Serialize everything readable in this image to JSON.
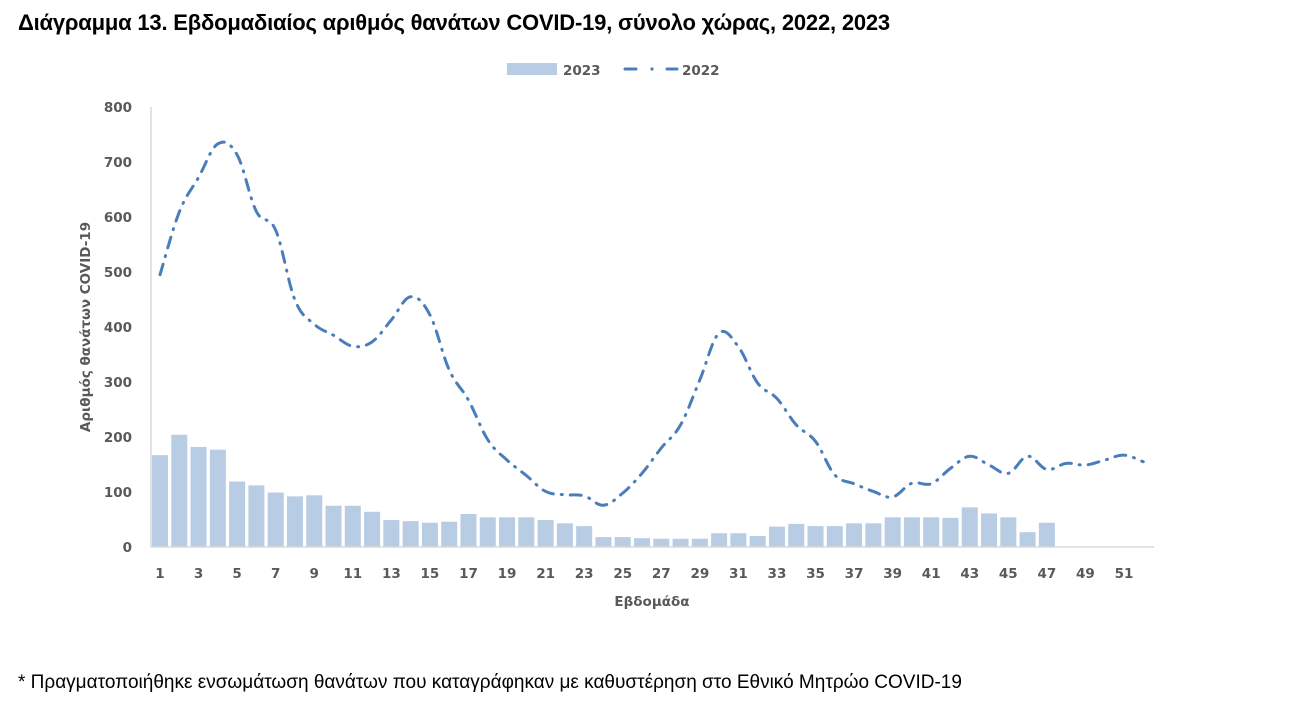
{
  "title": "Διάγραμμα 13. Εβδομαδιαίος αριθμός θανάτων COVID-19, σύνολο χώρας, 2022, 2023",
  "footnote": "* Πραγματοποιήθηκε ενσωμάτωση θανάτων που καταγράφηκαν με καθυστέρηση στο Εθνικό Μητρώο COVID-19",
  "colors": {
    "bar_2023": "#b8cce4",
    "line_2022": "#4a7ebb",
    "axis": "#d9d9d9",
    "tick_text": "#595959"
  },
  "chart_data": {
    "type": "bar+line",
    "title": "Διάγραμμα 13. Εβδομαδιαίος αριθμός θανάτων COVID-19, σύνολο χώρας, 2022, 2023",
    "xlabel": "Εβδομάδα",
    "ylabel": "Αριθμός θανάτων COVID-19",
    "ylim": [
      0,
      800
    ],
    "yticks": [
      0,
      100,
      200,
      300,
      400,
      500,
      600,
      700,
      800
    ],
    "xticks": [
      1,
      3,
      5,
      7,
      9,
      11,
      13,
      15,
      17,
      19,
      21,
      23,
      25,
      27,
      29,
      31,
      33,
      35,
      37,
      39,
      41,
      43,
      45,
      47,
      49,
      51
    ],
    "legend_position": "top",
    "grid": false,
    "x": [
      1,
      2,
      3,
      4,
      5,
      6,
      7,
      8,
      9,
      10,
      11,
      12,
      13,
      14,
      15,
      16,
      17,
      18,
      19,
      20,
      21,
      22,
      23,
      24,
      25,
      26,
      27,
      28,
      29,
      30,
      31,
      32,
      33,
      34,
      35,
      36,
      37,
      38,
      39,
      40,
      41,
      42,
      43,
      44,
      45,
      46,
      47,
      48,
      49,
      50,
      51,
      52
    ],
    "series": [
      {
        "name": "2023",
        "type": "bar",
        "values": [
          167,
          204,
          182,
          177,
          119,
          112,
          99,
          92,
          94,
          75,
          75,
          64,
          49,
          47,
          44,
          46,
          60,
          54,
          54,
          54,
          49,
          43,
          38,
          18,
          18,
          16,
          15,
          15,
          15,
          25,
          25,
          20,
          37,
          42,
          38,
          38,
          43,
          43,
          54,
          54,
          54,
          53,
          72,
          61,
          54,
          27,
          44
        ]
      },
      {
        "name": "2022",
        "type": "line",
        "style": "dash-dot",
        "values": [
          495,
          609,
          672,
          733,
          713,
          610,
          576,
          449,
          405,
          385,
          365,
          373,
          413,
          455,
          422,
          322,
          267,
          195,
          158,
          130,
          101,
          95,
          93,
          76,
          98,
          134,
          180,
          222,
          304,
          389,
          364,
          298,
          270,
          222,
          192,
          131,
          115,
          101,
          91,
          116,
          115,
          143,
          165,
          149,
          134,
          165,
          141,
          152,
          149,
          158,
          167,
          155
        ]
      }
    ]
  },
  "legend": [
    {
      "label": "2023",
      "icon": "bar-swatch"
    },
    {
      "label": "2022",
      "icon": "dash-dot-line"
    }
  ]
}
